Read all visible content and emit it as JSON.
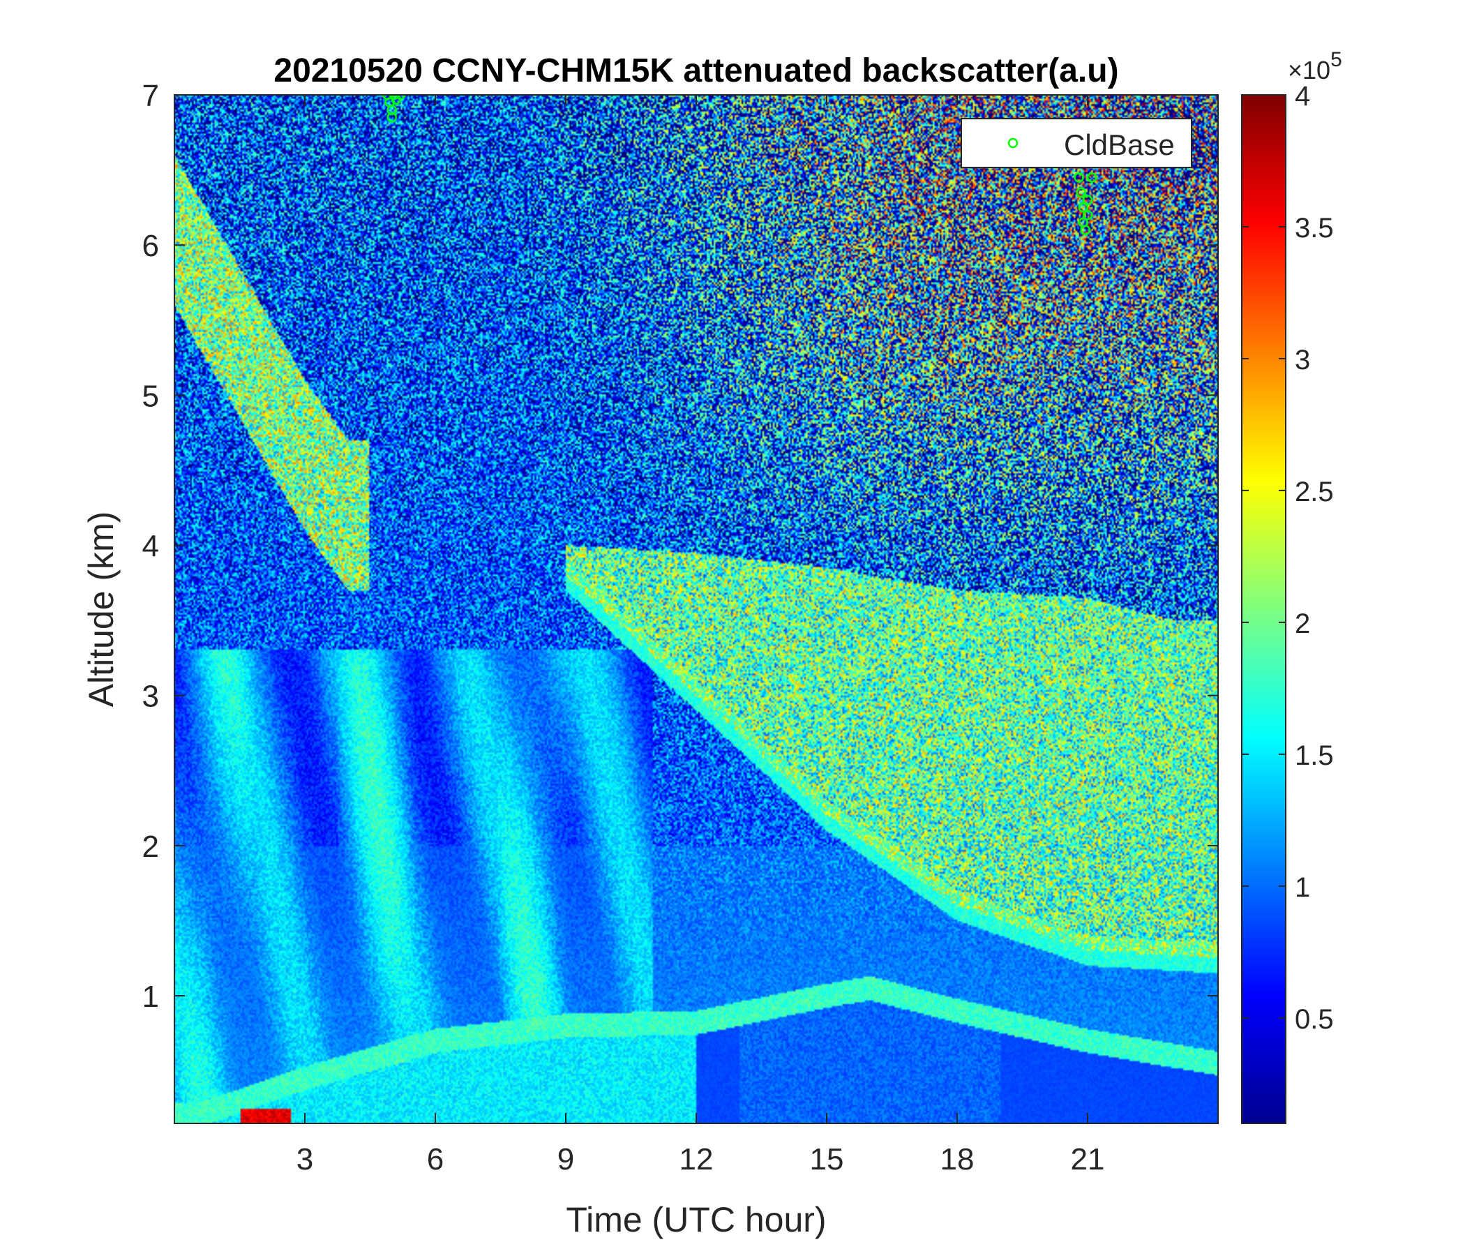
{
  "chart_data": {
    "type": "heatmap",
    "title": "20210520 CCNY-CHM15K attenuated backscatter(a.u)",
    "xlabel": "Time (UTC hour)",
    "ylabel": "Altitude (km)",
    "xlim": [
      0,
      24
    ],
    "ylim": [
      0.15,
      7
    ],
    "xticks": [
      3,
      6,
      9,
      12,
      15,
      18,
      21
    ],
    "xtick_labels": [
      "3",
      "6",
      "9",
      "12",
      "15",
      "18",
      "21"
    ],
    "yticks": [
      1,
      2,
      3,
      4,
      5,
      6,
      7
    ],
    "ytick_labels": [
      "1",
      "2",
      "3",
      "4",
      "5",
      "6",
      "7"
    ],
    "colorbar": {
      "range": [
        0.1,
        4
      ],
      "ticks": [
        0.5,
        1,
        1.5,
        2,
        2.5,
        3,
        3.5,
        4
      ],
      "tick_labels": [
        "0.5",
        "1",
        "1.5",
        "2",
        "2.5",
        "3",
        "3.5",
        "4"
      ],
      "multiplier_label": "×10",
      "multiplier_exponent": "5",
      "colormap": "jet"
    },
    "legend": {
      "placement": "top-right",
      "entries": [
        {
          "name": "CldBase",
          "marker": "circle",
          "color": "#00ff00"
        }
      ]
    },
    "series": [
      {
        "name": "CldBase",
        "x": [
          4.9,
          4.95,
          5.0,
          5.0,
          5.05,
          5.1,
          5.2,
          20.8,
          20.85,
          20.9,
          20.9,
          20.95,
          21.0,
          21.0,
          21.1
        ],
        "y": [
          7.0,
          6.95,
          6.9,
          6.85,
          7.0,
          6.97,
          7.0,
          6.45,
          6.35,
          6.25,
          6.15,
          6.1,
          6.3,
          6.2,
          6.45
        ]
      }
    ],
    "features": [
      {
        "name": "mixed layer top",
        "x": [
          0.5,
          3,
          6,
          9,
          12,
          15,
          16,
          18,
          21,
          24
        ],
        "y": [
          0.2,
          0.45,
          0.7,
          0.8,
          0.82,
          1.0,
          1.05,
          0.9,
          0.7,
          0.55
        ]
      },
      {
        "name": "aerosol layer base",
        "x": [
          9,
          12,
          15,
          18,
          21,
          24
        ],
        "y": [
          3.8,
          3.0,
          2.2,
          1.6,
          1.3,
          1.25
        ]
      },
      {
        "name": "aerosol layer top",
        "x": [
          9,
          12,
          15,
          18,
          21,
          23
        ],
        "y": [
          4.0,
          3.95,
          3.85,
          3.7,
          3.65,
          3.5
        ]
      },
      {
        "name": "elevated plume",
        "x": [
          0,
          1,
          2,
          3,
          4
        ],
        "y": [
          6.1,
          5.6,
          5.1,
          4.6,
          4.2
        ]
      }
    ]
  }
}
